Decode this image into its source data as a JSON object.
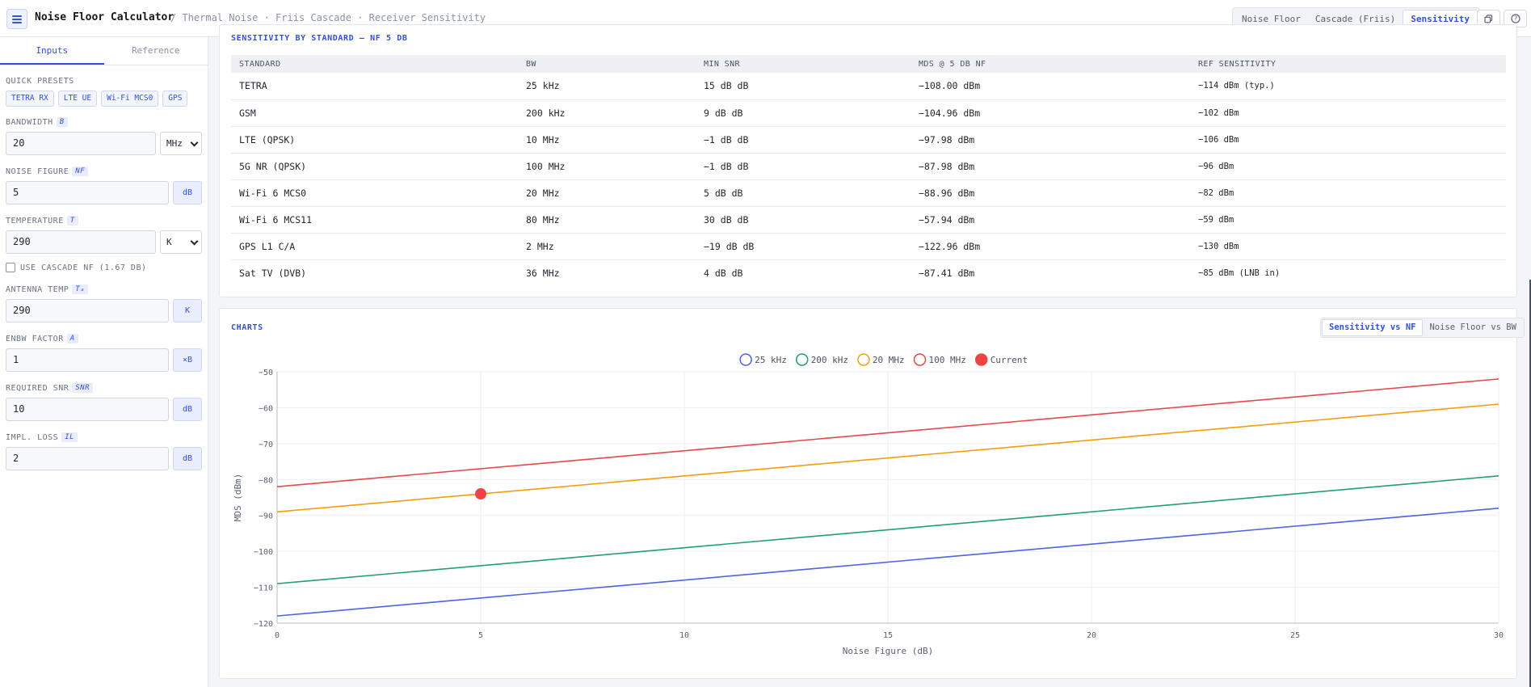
{
  "app": {
    "title": "Noise Floor Calculator",
    "breadcrumb": "/ Thermal Noise · Friis Cascade · Receiver Sensitivity",
    "menu_icon": "hamburger-icon"
  },
  "modes": [
    "Noise Floor",
    "Cascade (Friis)",
    "Sensitivity"
  ],
  "active_mode": "Sensitivity",
  "toolbar_icons": [
    "copy-icon",
    "help-icon"
  ],
  "sidebar": {
    "tabs": [
      "Inputs",
      "Reference"
    ],
    "active_tab": "Inputs",
    "presets_label": "QUICK PRESETS",
    "presets": [
      "TETRA RX",
      "LTE UE",
      "Wi-Fi MCS0",
      "GPS"
    ],
    "bandwidth": {
      "label": "BANDWIDTH",
      "symbol": "B",
      "value": "20",
      "unit": "MHz"
    },
    "noise_figure": {
      "label": "NOISE FIGURE",
      "symbol": "NF",
      "value": "5",
      "unit": "dB"
    },
    "temperature": {
      "label": "TEMPERATURE",
      "symbol": "T",
      "value": "290",
      "unit": "K"
    },
    "cascade": {
      "label": "USE CASCADE NF (1.67 DB)",
      "checked": false
    },
    "antenna_temp": {
      "label": "ANTENNA TEMP",
      "symbol": "Tₐ",
      "value": "290",
      "unit": "K"
    },
    "enbw": {
      "label": "ENBW FACTOR",
      "symbol": "A",
      "value": "1",
      "unit": "×B"
    },
    "required_snr": {
      "label": "REQUIRED SNR",
      "symbol": "SNR",
      "value": "10",
      "unit": "dB"
    },
    "impl_loss": {
      "label": "IMPL. LOSS",
      "symbol": "IL",
      "value": "2",
      "unit": "dB"
    }
  },
  "sensitivity_table": {
    "title": "SENSITIVITY BY STANDARD — NF 5 DB",
    "columns": [
      "STANDARD",
      "BW",
      "MIN SNR",
      "MDS @ 5 DB NF",
      "REF SENSITIVITY"
    ],
    "rows": [
      [
        "TETRA",
        "25 kHz",
        "15 dB dB",
        "−108.00 dBm",
        "−114 dBm (typ.)"
      ],
      [
        "GSM",
        "200 kHz",
        "9 dB dB",
        "−104.96 dBm",
        "−102 dBm"
      ],
      [
        "LTE (QPSK)",
        "10 MHz",
        "−1 dB dB",
        "−97.98 dBm",
        "−106 dBm"
      ],
      [
        "5G NR (QPSK)",
        "100 MHz",
        "−1 dB dB",
        "−87.98 dBm",
        "−96 dBm"
      ],
      [
        "Wi-Fi 6 MCS0",
        "20 MHz",
        "5 dB dB",
        "−88.96 dBm",
        "−82 dBm"
      ],
      [
        "Wi-Fi 6 MCS11",
        "80 MHz",
        "30 dB dB",
        "−57.94 dBm",
        "−59 dBm"
      ],
      [
        "GPS L1 C/A",
        "2 MHz",
        "−19 dB dB",
        "−122.96 dBm",
        "−130 dBm"
      ],
      [
        "Sat TV (DVB)",
        "36 MHz",
        "4 dB dB",
        "−87.41 dBm",
        "−85 dBm (LNB in)"
      ]
    ]
  },
  "charts": {
    "title": "CHARTS",
    "tabs": [
      "Sensitivity vs NF",
      "Noise Floor vs BW"
    ],
    "active_tab": "Sensitivity vs NF"
  },
  "chart_data": {
    "type": "line",
    "title": "",
    "xlabel": "Noise Figure (dB)",
    "ylabel": "MDS (dBm)",
    "xlim": [
      0,
      30
    ],
    "ylim": [
      -120,
      -50
    ],
    "xticks": [
      0,
      5,
      10,
      15,
      20,
      25,
      30
    ],
    "yticks": [
      -50,
      -60,
      -70,
      -80,
      -90,
      -100,
      -110,
      -120
    ],
    "grid": true,
    "legend_position": "top-center",
    "series": [
      {
        "name": "25 kHz",
        "color": "#4f63e6",
        "x": [
          0,
          30
        ],
        "y": [
          -118.0,
          -88.0
        ]
      },
      {
        "name": "200 kHz",
        "color": "#22a06b",
        "x": [
          0,
          30
        ],
        "y": [
          -109.0,
          -79.0
        ]
      },
      {
        "name": "20 MHz",
        "color": "#f59e0b",
        "x": [
          0,
          30
        ],
        "y": [
          -89.0,
          -59.0
        ]
      },
      {
        "name": "100 MHz",
        "color": "#e5484d",
        "x": [
          0,
          30
        ],
        "y": [
          -82.0,
          -52.0
        ]
      }
    ],
    "current_point": {
      "name": "Current",
      "color": "#ef4444",
      "x": 5,
      "y": -84.0
    }
  }
}
